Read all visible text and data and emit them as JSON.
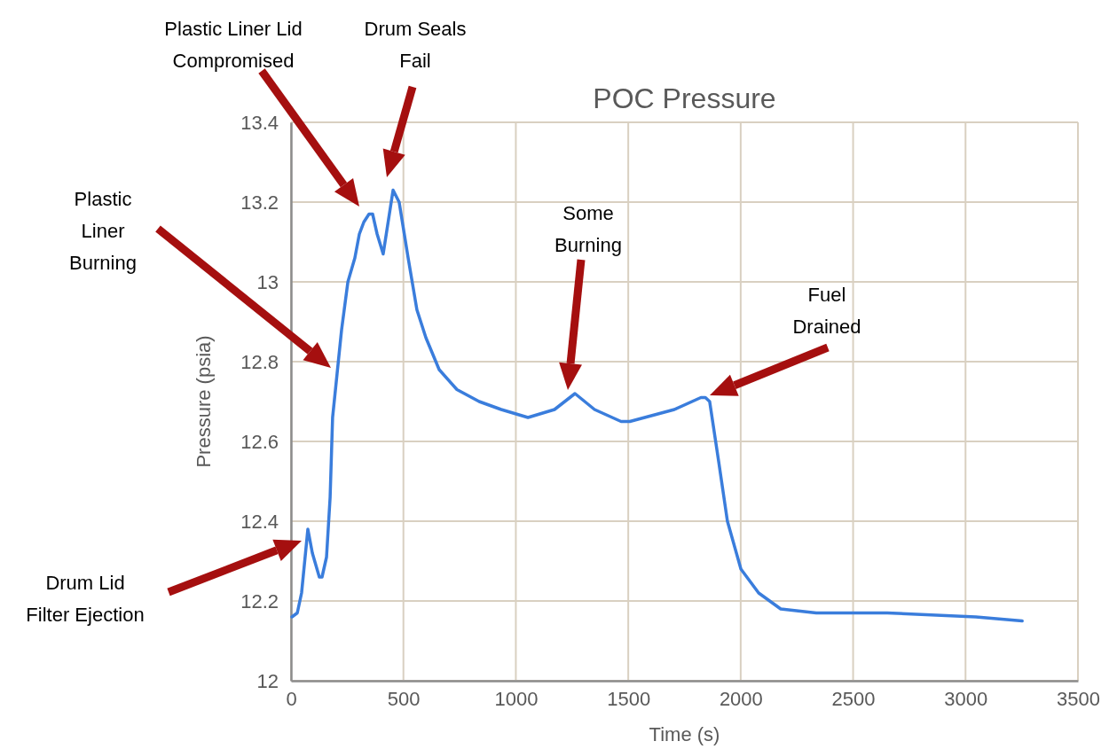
{
  "chart_data": {
    "type": "line",
    "title": "POC Pressure",
    "xlabel": "Time (s)",
    "ylabel": "Pressure (psia)",
    "xlim": [
      0,
      3500
    ],
    "xticks": [
      0,
      500,
      1000,
      1500,
      2000,
      2500,
      3000,
      3500
    ],
    "ylim": [
      12,
      13.4
    ],
    "yticks": [
      12,
      12.2,
      12.4,
      12.6,
      12.8,
      13,
      13.2,
      13.4
    ],
    "grid": true,
    "series": [
      {
        "color": "#3a7ddc",
        "x": [
          4,
          28,
          47,
          75,
          95,
          126,
          138,
          158,
          174,
          185,
          205,
          225,
          253,
          284,
          304,
          324,
          347,
          363,
          383,
          410,
          454,
          481,
          521,
          560,
          600,
          659,
          738,
          837,
          935,
          1054,
          1172,
          1263,
          1350,
          1468,
          1507,
          1705,
          1823,
          1843,
          1862,
          1902,
          1941,
          2001,
          2080,
          2178,
          2336,
          2652,
          3046,
          3252
        ],
        "values": [
          12.16,
          12.17,
          12.22,
          12.38,
          12.32,
          12.26,
          12.26,
          12.31,
          12.46,
          12.66,
          12.77,
          12.88,
          13.0,
          13.06,
          13.12,
          13.15,
          13.17,
          13.17,
          13.12,
          13.07,
          13.23,
          13.2,
          13.06,
          12.93,
          12.86,
          12.78,
          12.73,
          12.7,
          12.68,
          12.66,
          12.68,
          12.72,
          12.68,
          12.65,
          12.65,
          12.68,
          12.71,
          12.71,
          12.7,
          12.55,
          12.4,
          12.28,
          12.22,
          12.18,
          12.17,
          12.17,
          12.16,
          12.15
        ]
      }
    ],
    "annotations": [
      "Drum Lid\nFilter Ejection",
      "Plastic\nLiner\nBurning",
      "Plastic Liner Lid\nCompromised",
      "Drum Seals\nFail",
      "Some\nBurning",
      "Fuel\nDrained"
    ]
  }
}
